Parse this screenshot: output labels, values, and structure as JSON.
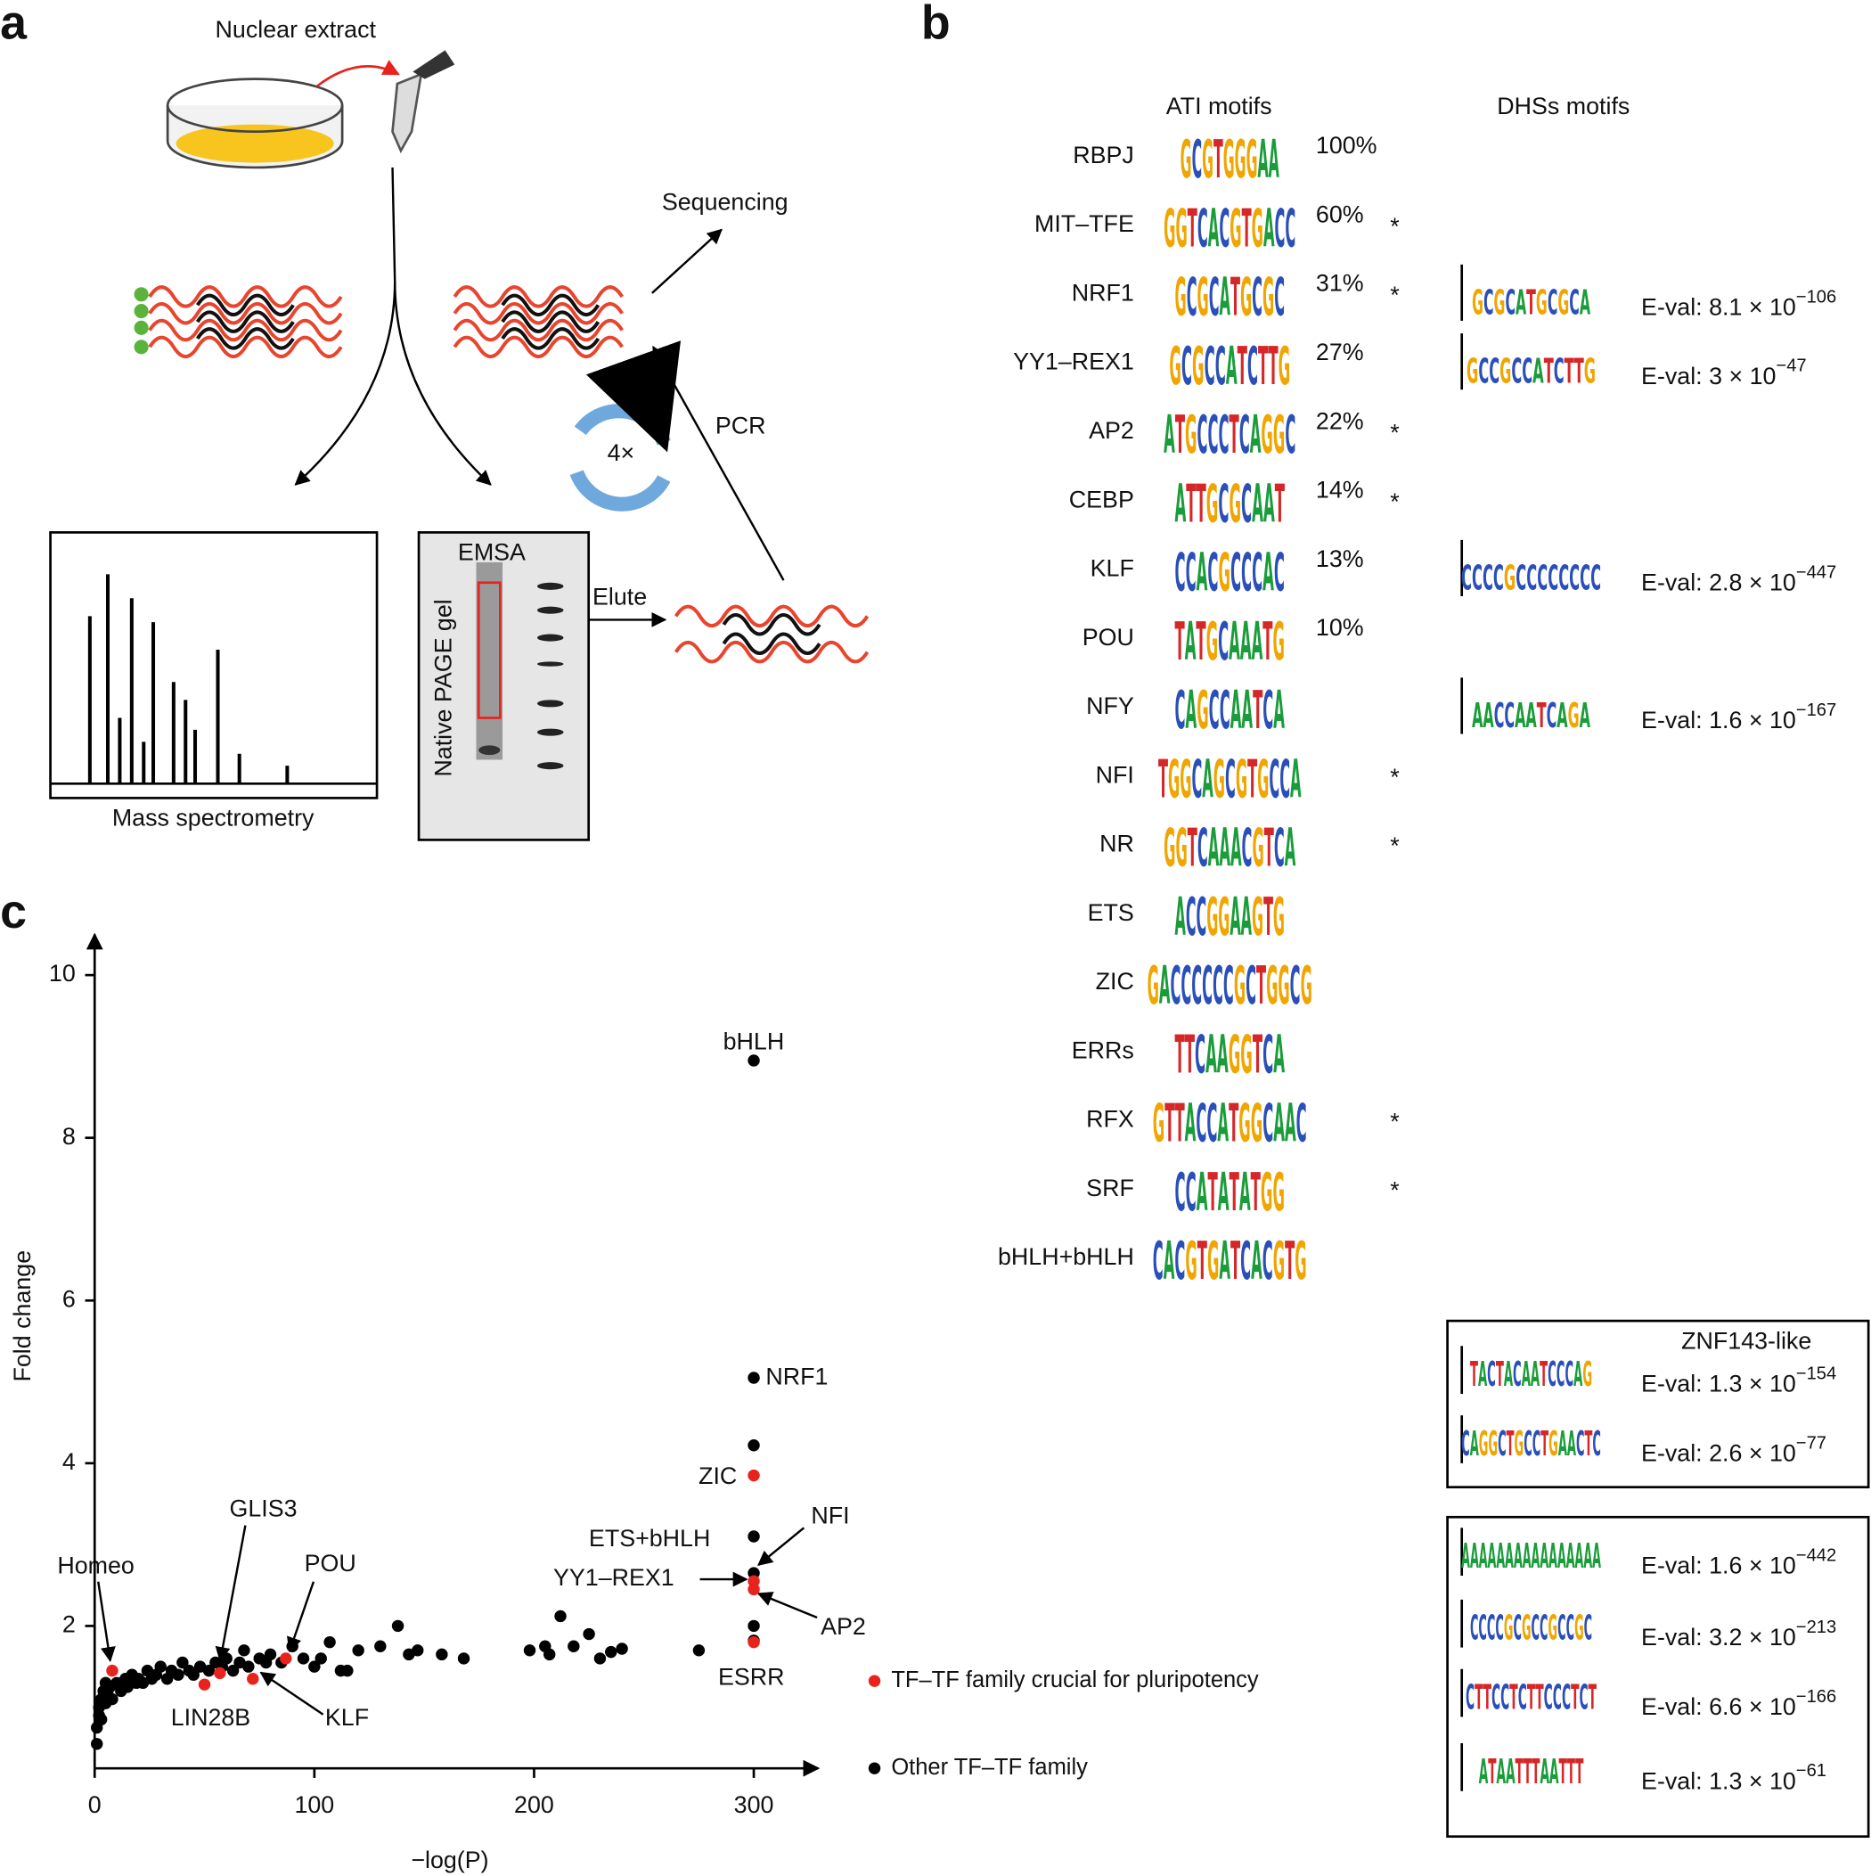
{
  "panel_labels": [
    "a",
    "b",
    "c"
  ],
  "panel_a": {
    "nuclear_extract": "Nuclear extract",
    "sequencing": "Sequencing",
    "pcr": "PCR",
    "cycles": "4×",
    "emsa": "EMSA",
    "gel": "Native PAGE gel",
    "elute": "Elute",
    "mass_spec": "Mass spectrometry"
  },
  "panel_b": {
    "ati_header": "ATI motifs",
    "dhs_header": "DHSs motifs",
    "rows": [
      {
        "name": "RBPJ",
        "logo": "GCGTGGGAA",
        "percent": "100%",
        "star": false
      },
      {
        "name": "MIT–TFE",
        "logo": "GGTCACGTGACC",
        "percent": "60%",
        "star": true
      },
      {
        "name": "NRF1",
        "logo": "GCGCATGCGC",
        "percent": "31%",
        "star": true,
        "dhs_logo": "GCGCATGCGCA",
        "eval": {
          "mantissa": "E-val: 8.1 × 10",
          "exponent": "−106"
        }
      },
      {
        "name": "YY1–REX1",
        "logo": "GCGCCATCTTG",
        "percent": "27%",
        "star": false,
        "dhs_logo": "GCCGCCATCTTG",
        "eval": {
          "mantissa": "E-val: 3 × 10",
          "exponent": "−47"
        }
      },
      {
        "name": "AP2",
        "logo": "ATGCCCTCAGGC",
        "percent": "22%",
        "star": true
      },
      {
        "name": "CEBP",
        "logo": "ATTGCGCAAT",
        "percent": "14%",
        "star": true
      },
      {
        "name": "KLF",
        "logo": "CCACGCCCAC",
        "percent": "13%",
        "star": false,
        "dhs_logo": "CCCCGCCCCCCCC",
        "eval": {
          "mantissa": "E-val: 2.8 × 10",
          "exponent": "−447"
        }
      },
      {
        "name": "POU",
        "logo": "TATGCAAATG",
        "percent": "10%",
        "star": false
      },
      {
        "name": "NFY",
        "logo": "CAGCCAATCA",
        "star": false,
        "dhs_logo": "AACCAATCAGA",
        "eval": {
          "mantissa": "E-val: 1.6 × 10",
          "exponent": "−167"
        }
      },
      {
        "name": "NFI",
        "logo": "TGGCAGCGTGCCA",
        "star": true
      },
      {
        "name": "NR",
        "logo": "GGTCAAACGTCA",
        "star": true
      },
      {
        "name": "ETS",
        "logo": "ACCGGAAGTG",
        "star": false
      },
      {
        "name": "ZIC",
        "logo": "GACCCCCCGCTGGCG",
        "star": false
      },
      {
        "name": "ERRs",
        "logo": "TTCAAGGTCA",
        "star": false
      },
      {
        "name": "RFX",
        "logo": "GTTACCATGGCAAC",
        "star": true
      },
      {
        "name": "SRF",
        "logo": "CCATATATGG",
        "star": true
      },
      {
        "name": "bHLH+bHLH",
        "logo": "CACGTGATCACGTG",
        "star": false
      }
    ],
    "star_symbol": "*",
    "znf_box": {
      "title": "ZNF143-like",
      "motifs": [
        {
          "logo": "TACTACAATCCCAG",
          "eval": {
            "mantissa": "E-val: 1.3 × 10",
            "exponent": "−154"
          }
        },
        {
          "logo": "CAGGCTGCCTGAACTC",
          "eval": {
            "mantissa": "E-val: 2.6 × 10",
            "exponent": "−77"
          }
        }
      ]
    },
    "other_box": {
      "motifs": [
        {
          "logo": "AAAAAAAAAAAAAAAA",
          "eval": {
            "mantissa": "E-val: 1.6 × 10",
            "exponent": "−442"
          }
        },
        {
          "logo": "CCCCGCGCCGCCGC",
          "eval": {
            "mantissa": "E-val: 3.2 × 10",
            "exponent": "−213"
          }
        },
        {
          "logo": "CTTCCTCTTCCCTCT",
          "eval": {
            "mantissa": "E-val: 6.6 × 10",
            "exponent": "−166"
          }
        },
        {
          "logo": "ATAATTTAATTT",
          "eval": {
            "mantissa": "E-val: 1.3 × 10",
            "exponent": "−61"
          }
        }
      ]
    }
  },
  "chart_data": {
    "type": "scatter",
    "x_label": "−log(P)",
    "y_label": "Fold change",
    "xlim": [
      0,
      325
    ],
    "ylim": [
      0.25,
      10.5
    ],
    "xticks": [
      0,
      100,
      200,
      300
    ],
    "yticks": [
      2,
      4,
      6,
      8,
      10
    ],
    "grid": false,
    "series": [
      {
        "name": "TF–TF family crucial for pluripotency",
        "color": "#e8231e",
        "x": [
          8,
          50,
          57,
          72,
          87,
          300,
          300,
          300,
          300
        ],
        "values": [
          1.45,
          1.28,
          1.42,
          1.35,
          1.6,
          3.85,
          2.55,
          2.45,
          1.8
        ]
      },
      {
        "name": "Other TF–TF family",
        "color": "#000000",
        "x": [
          1,
          1,
          2,
          2,
          3,
          3,
          4,
          5,
          5,
          6,
          7,
          8,
          10,
          12,
          14,
          15,
          17,
          19,
          20,
          22,
          24,
          26,
          28,
          30,
          33,
          35,
          38,
          40,
          43,
          45,
          48,
          52,
          55,
          58,
          60,
          63,
          66,
          68,
          70,
          75,
          78,
          80,
          85,
          90,
          95,
          100,
          103,
          107,
          112,
          115,
          120,
          130,
          138,
          143,
          147,
          158,
          168,
          198,
          205,
          207,
          212,
          218,
          225,
          230,
          235,
          240,
          275,
          300,
          300,
          300,
          300,
          300,
          300,
          300
        ],
        "values": [
          0.55,
          0.75,
          0.9,
          1.0,
          1.1,
          0.85,
          1.2,
          1.05,
          1.3,
          1.15,
          1.25,
          1.1,
          1.3,
          1.2,
          1.35,
          1.25,
          1.4,
          1.3,
          1.35,
          1.3,
          1.45,
          1.35,
          1.4,
          1.5,
          1.35,
          1.45,
          1.4,
          1.55,
          1.45,
          1.4,
          1.5,
          1.45,
          1.55,
          1.5,
          1.6,
          1.45,
          1.55,
          1.7,
          1.5,
          1.6,
          1.55,
          1.65,
          1.55,
          1.75,
          1.6,
          1.5,
          1.6,
          1.8,
          1.45,
          1.45,
          1.7,
          1.75,
          2.0,
          1.65,
          1.7,
          1.65,
          1.6,
          1.7,
          1.75,
          1.65,
          2.12,
          1.75,
          1.9,
          1.6,
          1.68,
          1.72,
          1.7,
          8.95,
          5.05,
          4.22,
          3.1,
          2.65,
          2.0,
          1.82
        ]
      }
    ],
    "annotations": [
      "bHLH",
      "NRF1",
      "ZIC",
      "ETS+bHLH",
      "NFI",
      "YY1–REX1",
      "AP2",
      "ESRR",
      "Homeo",
      "GLIS3",
      "POU",
      "LIN28B",
      "KLF"
    ]
  }
}
